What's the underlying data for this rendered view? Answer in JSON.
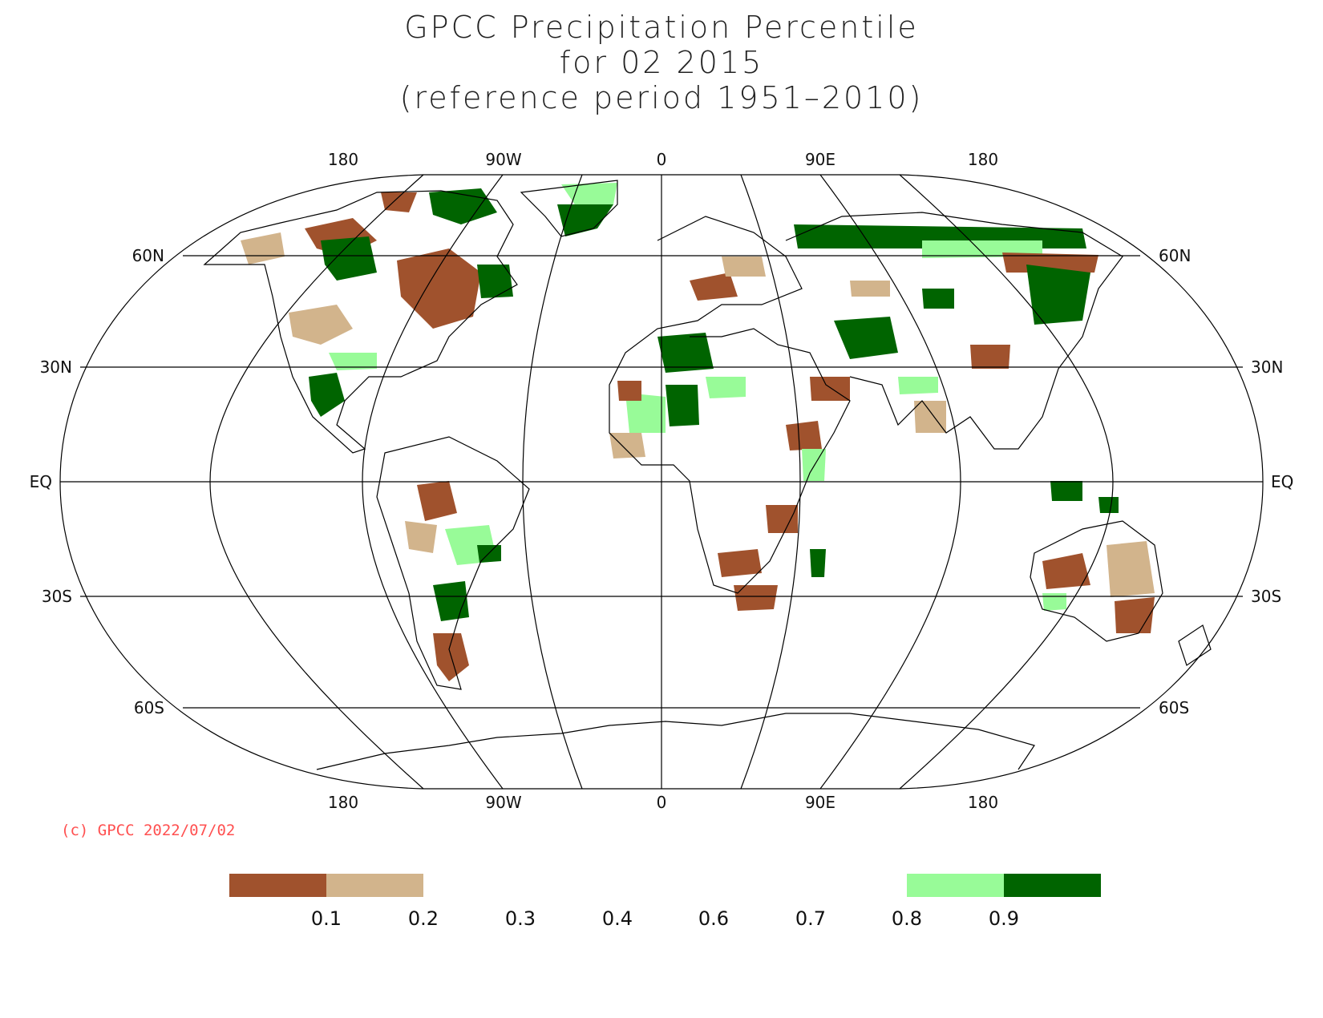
{
  "title": {
    "line1": "GPCC Precipitation Percentile",
    "line2": "for 02 2015",
    "line3": "(reference period 1951–2010)"
  },
  "axes": {
    "longitude_labels": [
      "180",
      "90W",
      "0",
      "90E",
      "180"
    ],
    "latitude_labels_left": [
      "60N",
      "30N",
      "EQ",
      "30S",
      "60S"
    ],
    "latitude_labels_right": [
      "60N",
      "30N",
      "EQ",
      "30S",
      "60S"
    ]
  },
  "copyright": "(c) GPCC 2022/07/02",
  "legend": {
    "labels": [
      "0.1",
      "0.2",
      "0.3",
      "0.4",
      "0.6",
      "0.7",
      "0.8",
      "0.9"
    ],
    "colors": {
      "very_dry": "#a0522d",
      "dry": "#d2b48c",
      "wet": "#98fb98",
      "very_wet": "#006400"
    }
  }
}
